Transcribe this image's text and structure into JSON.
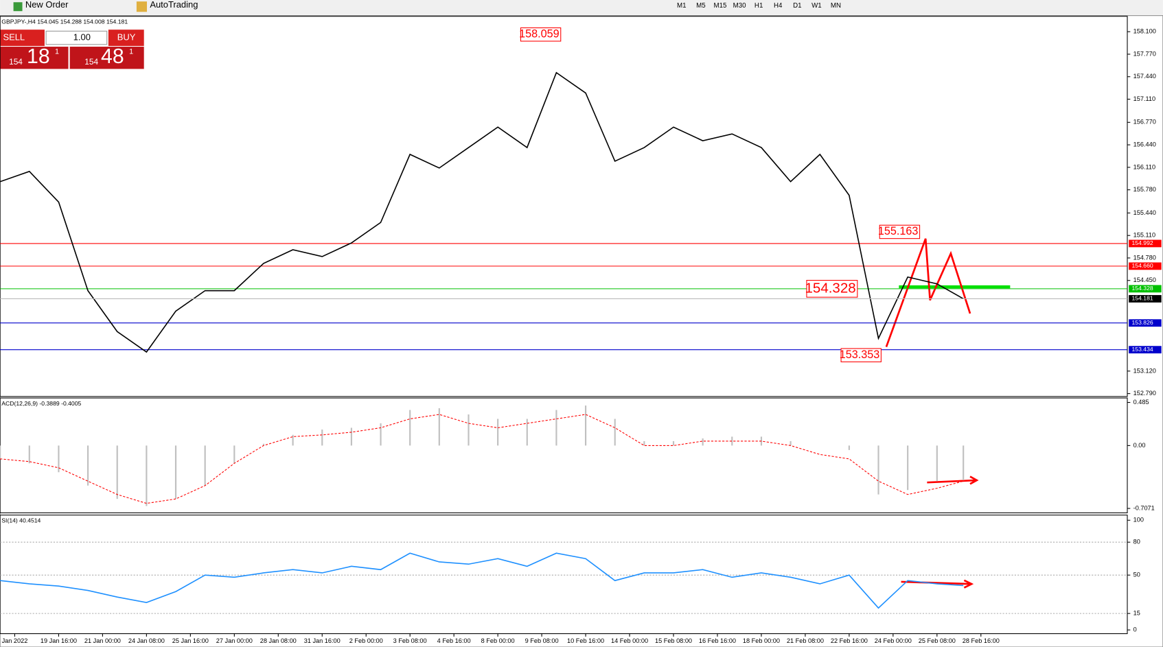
{
  "toolbar": {
    "new_order": "New Order",
    "autotrading": "AutoTrading",
    "timeframes": [
      "M1",
      "M5",
      "M15",
      "M30",
      "H1",
      "H4",
      "D1",
      "W1",
      "MN"
    ]
  },
  "trade_panel": {
    "sell": "SELL",
    "buy": "BUY",
    "volume": "1.00",
    "sell_big": "154",
    "sell_pips": "18",
    "sell_frac": "1",
    "buy_big": "154",
    "buy_pips": "48",
    "buy_frac": "1"
  },
  "chart_data": [
    {
      "type": "line",
      "title": "GBPJPY-,H4  154.045 154.288 154.008 154.181",
      "color": "#000000",
      "x": [
        0,
        10,
        20,
        30,
        40,
        50,
        60,
        70,
        80,
        90,
        100,
        110,
        120,
        130,
        140,
        150,
        160,
        170,
        180,
        190,
        200,
        210,
        220,
        230,
        240,
        250,
        260,
        270,
        280,
        290,
        300,
        310,
        320,
        329
      ],
      "values": [
        155.9,
        156.05,
        155.6,
        154.3,
        153.7,
        153.4,
        154.0,
        154.3,
        154.3,
        154.7,
        154.9,
        154.8,
        155.0,
        155.3,
        156.3,
        156.1,
        156.4,
        156.7,
        156.4,
        157.5,
        157.2,
        156.2,
        156.4,
        156.7,
        156.5,
        156.6,
        156.4,
        155.9,
        156.3,
        155.7,
        153.6,
        154.5,
        154.4,
        154.181
      ],
      "xlim": [
        0,
        385
      ],
      "xticks": [
        {
          "value": 5,
          "label": "Jan 2022"
        },
        {
          "value": 20,
          "label": "19 Jan 16:00"
        },
        {
          "value": 35,
          "label": "21 Jan 00:00"
        },
        {
          "value": 50,
          "label": "24 Jan 08:00"
        },
        {
          "value": 65,
          "label": "25 Jan 16:00"
        },
        {
          "value": 80,
          "label": "27 Jan 00:00"
        },
        {
          "value": 95,
          "label": "28 Jan 08:00"
        },
        {
          "value": 110,
          "label": "31 Jan 16:00"
        },
        {
          "value": 125,
          "label": "2 Feb 00:00"
        },
        {
          "value": 140,
          "label": "3 Feb 08:00"
        },
        {
          "value": 155,
          "label": "4 Feb 16:00"
        },
        {
          "value": 170,
          "label": "8 Feb 00:00"
        },
        {
          "value": 185,
          "label": "9 Feb 08:00"
        },
        {
          "value": 200,
          "label": "10 Feb 16:00"
        },
        {
          "value": 215,
          "label": "14 Feb 00:00"
        },
        {
          "value": 230,
          "label": "15 Feb 08:00"
        },
        {
          "value": 245,
          "label": "16 Feb 16:00"
        },
        {
          "value": 260,
          "label": "18 Feb 00:00"
        },
        {
          "value": 275,
          "label": "21 Feb 08:00"
        },
        {
          "value": 290,
          "label": "22 Feb 16:00"
        },
        {
          "value": 305,
          "label": "24 Feb 00:00"
        },
        {
          "value": 320,
          "label": "25 Feb 08:00"
        },
        {
          "value": 335,
          "label": "28 Feb 16:00"
        }
      ],
      "ylim": [
        152.747,
        158.326
      ],
      "yticks": [
        {
          "value": 158.1,
          "label": "158.100"
        },
        {
          "value": 157.77,
          "label": "157.770"
        },
        {
          "value": 157.44,
          "label": "157.440"
        },
        {
          "value": 157.11,
          "label": "157.110"
        },
        {
          "value": 156.77,
          "label": "156.770"
        },
        {
          "value": 156.44,
          "label": "156.440"
        },
        {
          "value": 156.11,
          "label": "156.110"
        },
        {
          "value": 155.78,
          "label": "155.780"
        },
        {
          "value": 155.44,
          "label": "155.440"
        },
        {
          "value": 155.11,
          "label": "155.110"
        },
        {
          "value": 154.78,
          "label": "154.780"
        },
        {
          "value": 154.45,
          "label": "154.450"
        },
        {
          "value": 153.12,
          "label": "153.120"
        },
        {
          "value": 152.79,
          "label": "152.790"
        }
      ],
      "levels": [
        {
          "value": 154.992,
          "label": "154.992",
          "color": "#ff0000"
        },
        {
          "value": 154.66,
          "label": "154.660",
          "color": "#ff0000"
        },
        {
          "value": 154.328,
          "label": "154.328",
          "color": "#00c000"
        },
        {
          "value": 153.826,
          "label": "153.826",
          "color": "#0000cc"
        },
        {
          "value": 153.434,
          "label": "153.434",
          "color": "#0000cc"
        }
      ],
      "current_price": 154.181,
      "annotations": [
        158.059,
        155.163,
        154.328,
        153.353
      ]
    },
    {
      "type": "macd",
      "title": "ACD(12,26,9) -0.3889 -0.4005",
      "values": [
        -0.15,
        -0.2,
        -0.3,
        -0.45,
        -0.6,
        -0.68,
        -0.6,
        -0.45,
        -0.2,
        0.02,
        0.12,
        0.18,
        0.2,
        0.25,
        0.4,
        0.42,
        0.35,
        0.3,
        0.3,
        0.4,
        0.45,
        0.3,
        0.05,
        0.05,
        0.08,
        0.1,
        0.1,
        0.05,
        0.0,
        -0.05,
        -0.55,
        -0.5,
        -0.4,
        -0.39
      ],
      "signal": [
        -0.15,
        -0.18,
        -0.25,
        -0.4,
        -0.55,
        -0.65,
        -0.6,
        -0.45,
        -0.2,
        0.0,
        0.1,
        0.12,
        0.15,
        0.2,
        0.3,
        0.35,
        0.25,
        0.2,
        0.25,
        0.3,
        0.35,
        0.2,
        0.0,
        0.0,
        0.05,
        0.05,
        0.05,
        0.0,
        -0.1,
        -0.15,
        -0.4,
        -0.55,
        -0.48,
        -0.4
      ],
      "color": "#c0c0c0",
      "signal_color": "#ff0000",
      "ylim": [
        -0.757,
        0.535
      ],
      "yticks": [
        0.485,
        {
          "value": 0,
          "label": "0.00"
        },
        -0.7071
      ]
    },
    {
      "type": "line",
      "title": "SI(14) 40.4514",
      "color": "#1e90ff",
      "values": [
        45,
        42,
        40,
        36,
        30,
        25,
        35,
        50,
        48,
        52,
        55,
        52,
        58,
        55,
        70,
        62,
        60,
        65,
        58,
        70,
        65,
        45,
        52,
        52,
        55,
        48,
        52,
        48,
        42,
        50,
        20,
        45,
        42,
        40.45
      ],
      "ylim": [
        -3.4,
        104.7
      ],
      "yticks": [
        100,
        80,
        50,
        15,
        0
      ],
      "levels": [
        80,
        50,
        15
      ]
    }
  ]
}
